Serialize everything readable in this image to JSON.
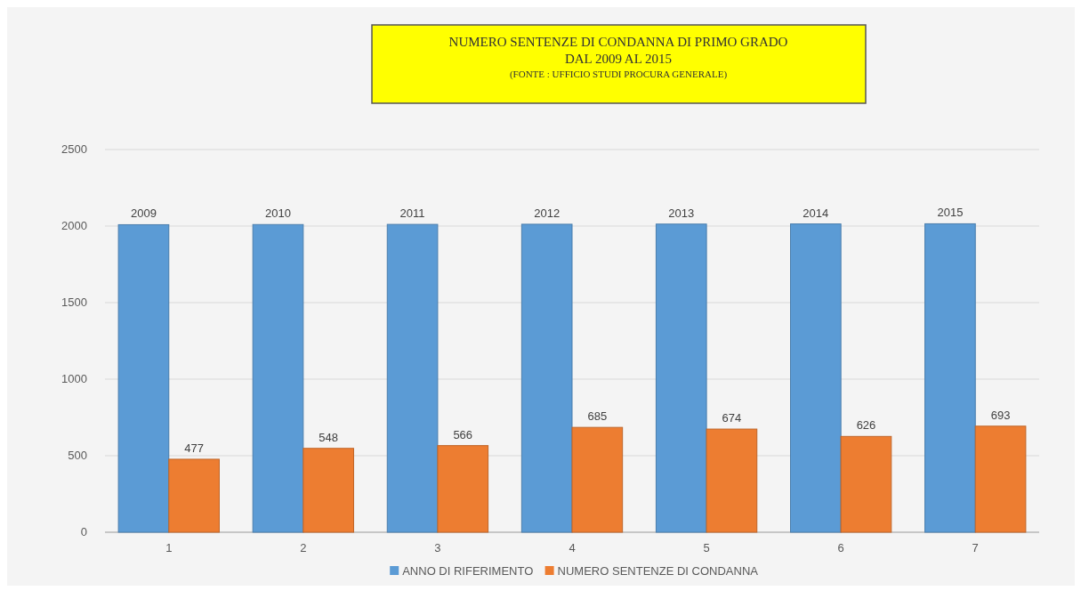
{
  "chart_data": {
    "type": "bar",
    "title": "NUMERO SENTENZE DI CONDANNA DI PRIMO GRADO",
    "subtitle": "DAL 2009 AL 2015",
    "annotations": [
      "(FONTE : UFFICIO STUDI PROCURA GENERALE)"
    ],
    "categories": [
      "1",
      "2",
      "3",
      "4",
      "5",
      "6",
      "7"
    ],
    "series": [
      {
        "name": "ANNO DI RIFERIMENTO",
        "color": "#5b9bd5",
        "values": [
          2009,
          2010,
          2011,
          2012,
          2013,
          2014,
          2015
        ]
      },
      {
        "name": "NUMERO SENTENZE DI CONDANNA",
        "color": "#ed7d31",
        "values": [
          477,
          548,
          566,
          685,
          674,
          626,
          693
        ]
      }
    ],
    "ylim": [
      0,
      2500
    ],
    "yticks": [
      0,
      500,
      1000,
      1500,
      2000,
      2500
    ],
    "grid": "y",
    "legend": "bottom",
    "data_labels": true
  }
}
